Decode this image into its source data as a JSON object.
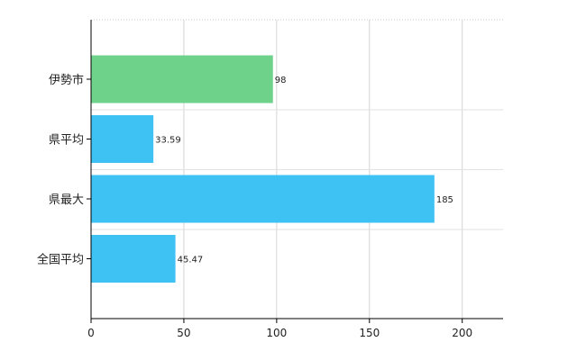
{
  "chart_data": {
    "type": "bar",
    "orientation": "horizontal",
    "title": "",
    "xlabel": "",
    "ylabel": "",
    "categories": [
      "伊勢市",
      "県平均",
      "県最大",
      "全国平均"
    ],
    "values": [
      98,
      33.59,
      185,
      45.47
    ],
    "value_labels": [
      "98",
      "33.59",
      "185",
      "45.47"
    ],
    "bar_colors": [
      "#6ed28a",
      "#3ec1f3",
      "#3ec1f3",
      "#3ec1f3"
    ],
    "xlim": [
      0,
      222
    ],
    "xticks": [
      0,
      50,
      100,
      150,
      200
    ],
    "xtick_labels": [
      "0",
      "50",
      "100",
      "150",
      "200"
    ],
    "grid": true,
    "legend": "none"
  }
}
